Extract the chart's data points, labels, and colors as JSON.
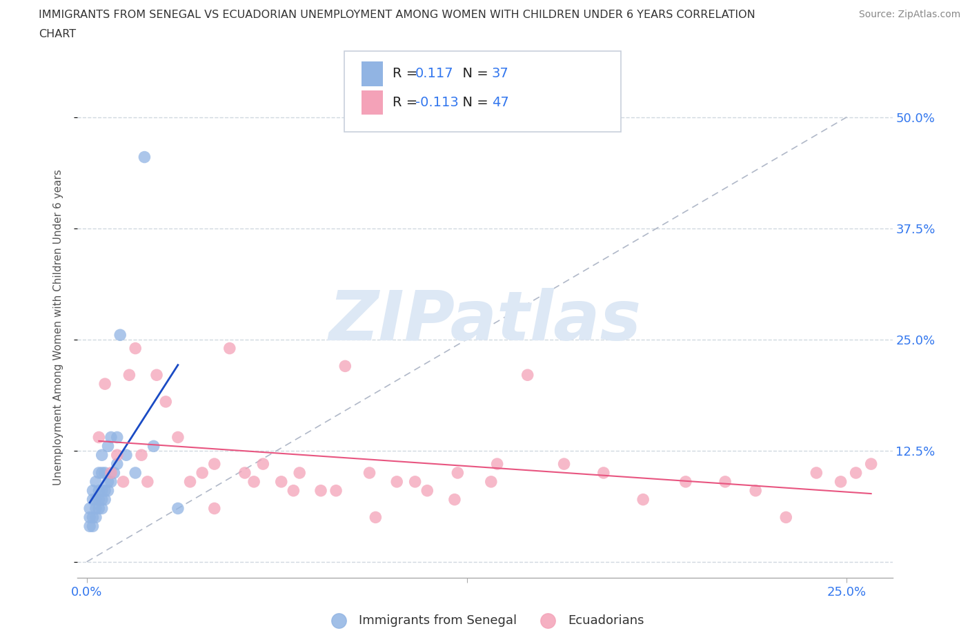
{
  "title_line1": "IMMIGRANTS FROM SENEGAL VS ECUADORIAN UNEMPLOYMENT AMONG WOMEN WITH CHILDREN UNDER 6 YEARS CORRELATION",
  "title_line2": "CHART",
  "source": "Source: ZipAtlas.com",
  "ylabel": "Unemployment Among Women with Children Under 6 years",
  "ytick_values": [
    0.0,
    0.125,
    0.25,
    0.375,
    0.5
  ],
  "ytick_labels": [
    "",
    "12.5%",
    "25.0%",
    "37.5%",
    "50.0%"
  ],
  "xtick_values": [
    0.0,
    0.125,
    0.25
  ],
  "xtick_labels": [
    "0.0%",
    "",
    "25.0%"
  ],
  "xlim": [
    -0.003,
    0.265
  ],
  "ylim": [
    -0.018,
    0.545
  ],
  "blue_color": "#91b4e3",
  "pink_color": "#f4a2b8",
  "trendline_blue": "#1a4bc4",
  "trendline_pink": "#e85580",
  "trendline_gray": "#b0b8c8",
  "background": "#ffffff",
  "grid_color": "#d0d8e0",
  "legend_title_color": "#333333",
  "legend_value_color": "#3377ee",
  "watermark_color": "#dde8f5",
  "senegal_x": [
    0.001,
    0.001,
    0.001,
    0.002,
    0.002,
    0.002,
    0.002,
    0.003,
    0.003,
    0.003,
    0.003,
    0.004,
    0.004,
    0.004,
    0.004,
    0.005,
    0.005,
    0.005,
    0.005,
    0.005,
    0.006,
    0.006,
    0.006,
    0.007,
    0.007,
    0.007,
    0.008,
    0.008,
    0.009,
    0.01,
    0.01,
    0.011,
    0.013,
    0.016,
    0.019,
    0.022,
    0.03
  ],
  "senegal_y": [
    0.04,
    0.05,
    0.06,
    0.04,
    0.05,
    0.07,
    0.08,
    0.05,
    0.06,
    0.07,
    0.09,
    0.06,
    0.07,
    0.08,
    0.1,
    0.06,
    0.07,
    0.08,
    0.1,
    0.12,
    0.07,
    0.08,
    0.1,
    0.08,
    0.09,
    0.13,
    0.09,
    0.14,
    0.1,
    0.11,
    0.14,
    0.255,
    0.12,
    0.1,
    0.455,
    0.13,
    0.06
  ],
  "ecuador_x": [
    0.004,
    0.006,
    0.008,
    0.01,
    0.012,
    0.014,
    0.016,
    0.018,
    0.02,
    0.023,
    0.026,
    0.03,
    0.034,
    0.038,
    0.042,
    0.047,
    0.052,
    0.058,
    0.064,
    0.07,
    0.077,
    0.085,
    0.093,
    0.102,
    0.112,
    0.122,
    0.133,
    0.145,
    0.157,
    0.17,
    0.183,
    0.197,
    0.21,
    0.22,
    0.23,
    0.24,
    0.248,
    0.253,
    0.258,
    0.042,
    0.055,
    0.068,
    0.082,
    0.095,
    0.108,
    0.121,
    0.135
  ],
  "ecuador_y": [
    0.14,
    0.2,
    0.1,
    0.12,
    0.09,
    0.21,
    0.24,
    0.12,
    0.09,
    0.21,
    0.18,
    0.14,
    0.09,
    0.1,
    0.11,
    0.24,
    0.1,
    0.11,
    0.09,
    0.1,
    0.08,
    0.22,
    0.1,
    0.09,
    0.08,
    0.1,
    0.09,
    0.21,
    0.11,
    0.1,
    0.07,
    0.09,
    0.09,
    0.08,
    0.05,
    0.1,
    0.09,
    0.1,
    0.11,
    0.06,
    0.09,
    0.08,
    0.08,
    0.05,
    0.09,
    0.07,
    0.11
  ]
}
